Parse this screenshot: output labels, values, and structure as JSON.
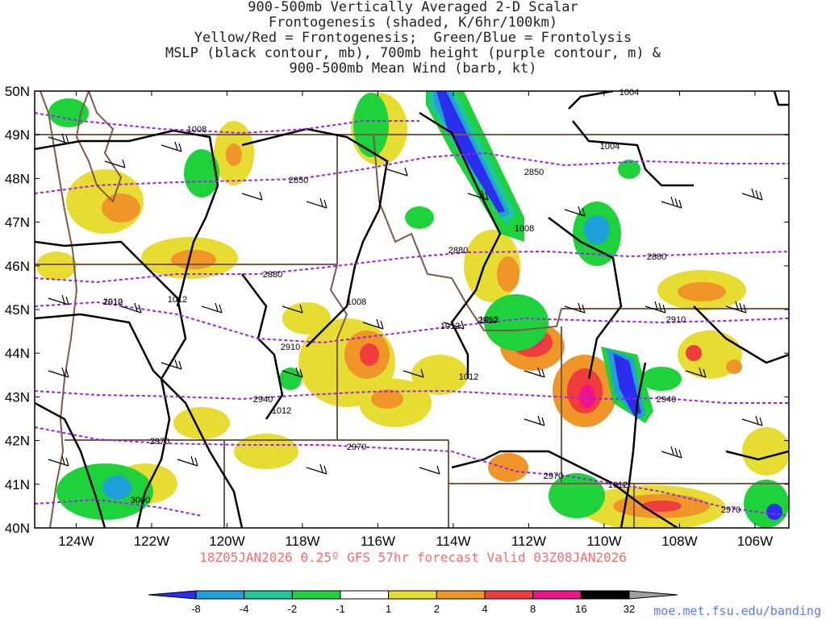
{
  "title": {
    "lines": [
      "900-500mb Vertically Averaged 2-D Scalar",
      "Frontogenesis (shaded, K/6hr/100km)",
      "Yellow/Red = Frontogenesis;  Green/Blue = Frontolysis",
      "MSLP (black contour, mb), 700mb height (purple contour, m) &",
      "900-500mb Mean Wind (barb, kt)"
    ]
  },
  "map": {
    "lat_labels": [
      "50N",
      "49N",
      "48N",
      "47N",
      "46N",
      "45N",
      "44N",
      "43N",
      "42N",
      "41N",
      "40N"
    ],
    "lon_labels": [
      "124W",
      "122W",
      "120W",
      "118W",
      "116W",
      "114W",
      "112W",
      "110W",
      "108W",
      "106W"
    ],
    "lat_range": [
      40,
      50
    ],
    "lon_range": [
      -125.1,
      -105.1
    ],
    "mslp_labels": [
      "1004",
      "1004",
      "1008",
      "1008",
      "1008",
      "1012",
      "1012",
      "1012",
      "1012",
      "1012",
      "1012",
      "1012"
    ],
    "height_labels": [
      "2850",
      "2850",
      "2880",
      "2880",
      "2880",
      "2910",
      "2910",
      "2910",
      "2910",
      "2940",
      "2940",
      "2970",
      "2970",
      "2970",
      "2970",
      "3000"
    ],
    "colors": {
      "state_border": "#7a5a48",
      "mslp": "#000000",
      "height": "#a020f0",
      "barb": "#000000"
    }
  },
  "colorbar": {
    "labels": [
      "-8",
      "-4",
      "-2",
      "-1",
      "1",
      "2",
      "4",
      "8",
      "16",
      "32"
    ],
    "colors": [
      "#2d2df0",
      "#1ea0d8",
      "#1ec896",
      "#1ed23c",
      "#ffffff",
      "#e6dc32",
      "#f09628",
      "#f03c3c",
      "#f0148c",
      "#000000",
      "#a0a0a0"
    ]
  },
  "footer": {
    "run_info": "18Z05JAN2026 0.25º GFS 57hr forecast Valid 03Z08JAN2026",
    "credit": "moe.met.fsu.edu/banding"
  }
}
